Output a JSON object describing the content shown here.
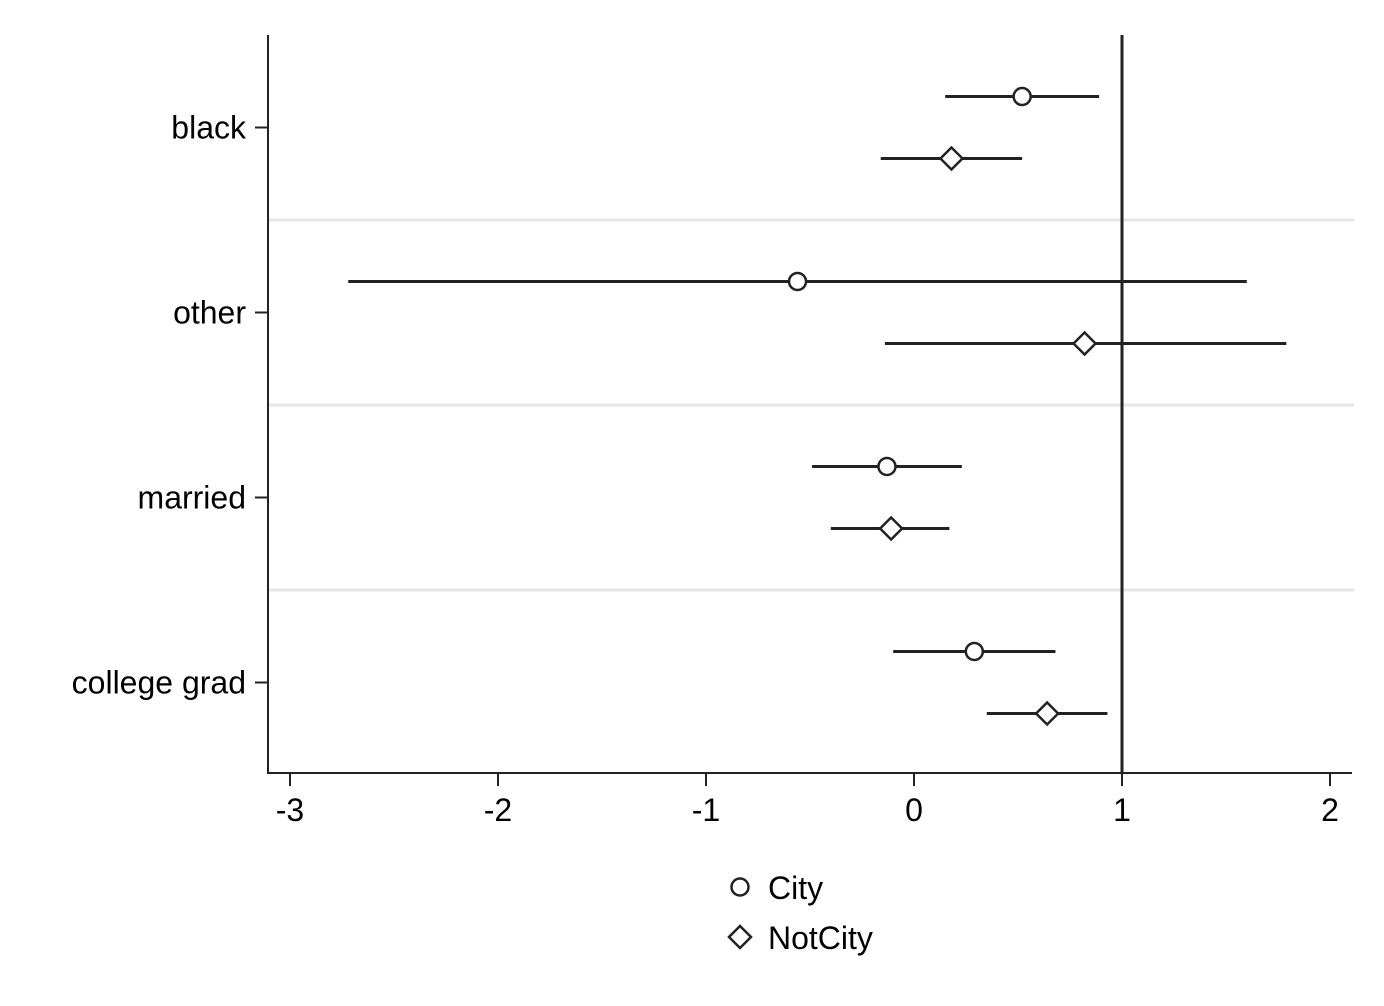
{
  "chart_data": {
    "type": "scatter",
    "subtype": "coefficient-plot",
    "title": "",
    "xlabel": "",
    "ylabel": "",
    "xlim": [
      -3.1,
      2.1
    ],
    "xticks": [
      "-3",
      "-2",
      "-1",
      "0",
      "1",
      "2"
    ],
    "reference_line_x": 1,
    "grid": "horizontal separators between categories",
    "legend_position": "bottom-center",
    "colors": {
      "line": "#222222",
      "separator": "#e6e6e6",
      "axis": "#222222"
    },
    "categories": [
      "black",
      "other",
      "married",
      "college grad"
    ],
    "series": [
      {
        "name": "City",
        "marker": "circle",
        "points": [
          {
            "category": "black",
            "estimate": 0.52,
            "ci_low": 0.15,
            "ci_high": 0.89
          },
          {
            "category": "other",
            "estimate": -0.56,
            "ci_low": -2.72,
            "ci_high": 1.6
          },
          {
            "category": "married",
            "estimate": -0.13,
            "ci_low": -0.49,
            "ci_high": 0.23
          },
          {
            "category": "college grad",
            "estimate": 0.29,
            "ci_low": -0.1,
            "ci_high": 0.68
          }
        ]
      },
      {
        "name": "NotCity",
        "marker": "diamond",
        "points": [
          {
            "category": "black",
            "estimate": 0.18,
            "ci_low": -0.16,
            "ci_high": 0.52
          },
          {
            "category": "other",
            "estimate": 0.82,
            "ci_low": -0.14,
            "ci_high": 1.79
          },
          {
            "category": "married",
            "estimate": -0.11,
            "ci_low": -0.4,
            "ci_high": 0.17
          },
          {
            "category": "college grad",
            "estimate": 0.64,
            "ci_low": 0.35,
            "ci_high": 0.93
          }
        ]
      }
    ]
  }
}
